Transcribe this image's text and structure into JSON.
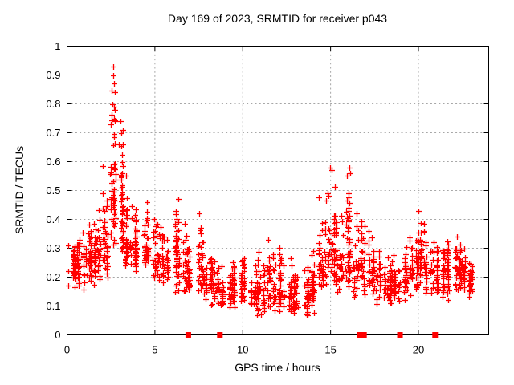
{
  "page": {
    "background": "#ffffff"
  },
  "chart_data": {
    "type": "scatter",
    "title": "Day 169 of 2023, SRMTID for receiver p043",
    "xlabel": "GPS time / hours",
    "ylabel": "SRMTID / TECUs",
    "xlim": [
      0,
      24
    ],
    "ylim": [
      0,
      1
    ],
    "xticks": [
      0,
      5,
      10,
      15,
      20
    ],
    "xtick_labels": [
      "0",
      "5",
      "10",
      "15",
      "20"
    ],
    "yticks": [
      0,
      0.1,
      0.2,
      0.3,
      0.4,
      0.5,
      0.6,
      0.7,
      0.8,
      0.9,
      1
    ],
    "ytick_labels": [
      "0",
      "0.1",
      "0.2",
      "0.3",
      "0.4",
      "0.5",
      "0.6",
      "0.7",
      "0.8",
      "0.9",
      "1"
    ],
    "grid": true,
    "legend": "none",
    "marker": {
      "shape": "plus",
      "color": "#ff0000",
      "size": 7
    },
    "colors": {
      "grid": "#a6a6a6",
      "frame": "#000000",
      "text": "#000000",
      "points": "#ff0000"
    },
    "series": [
      {
        "name": "SRMTID",
        "representation": "density_bins",
        "bin_format": [
          "t_start_h",
          "t_end_h",
          "n_points",
          "y_min",
          "y_max",
          "y_center"
        ],
        "bins": [
          [
            0.0,
            0.5,
            42,
            0.16,
            0.33,
            0.24
          ],
          [
            0.5,
            1.0,
            42,
            0.15,
            0.38,
            0.25
          ],
          [
            1.0,
            1.5,
            44,
            0.15,
            0.42,
            0.26
          ],
          [
            1.5,
            2.0,
            44,
            0.16,
            0.46,
            0.28
          ],
          [
            2.0,
            2.5,
            40,
            0.18,
            0.6,
            0.33
          ],
          [
            2.5,
            2.9,
            55,
            0.28,
            0.93,
            0.48
          ],
          [
            2.9,
            3.3,
            48,
            0.25,
            0.74,
            0.4
          ],
          [
            3.3,
            3.8,
            40,
            0.22,
            0.57,
            0.31
          ],
          [
            3.8,
            4.3,
            36,
            0.2,
            0.46,
            0.28
          ],
          [
            4.3,
            4.8,
            36,
            0.22,
            0.47,
            0.29
          ],
          [
            4.8,
            5.3,
            36,
            0.18,
            0.43,
            0.27
          ],
          [
            5.3,
            5.8,
            36,
            0.17,
            0.38,
            0.25
          ],
          [
            5.8,
            6.3,
            36,
            0.15,
            0.44,
            0.26
          ],
          [
            6.3,
            6.8,
            36,
            0.13,
            0.47,
            0.24
          ],
          [
            6.8,
            7.3,
            36,
            0.12,
            0.33,
            0.2
          ],
          [
            7.3,
            7.8,
            36,
            0.12,
            0.42,
            0.21
          ],
          [
            7.8,
            8.3,
            36,
            0.1,
            0.31,
            0.19
          ],
          [
            8.3,
            8.8,
            36,
            0.1,
            0.28,
            0.17
          ],
          [
            8.8,
            9.3,
            36,
            0.06,
            0.25,
            0.15
          ],
          [
            9.3,
            9.8,
            36,
            0.08,
            0.3,
            0.17
          ],
          [
            9.8,
            10.3,
            36,
            0.08,
            0.3,
            0.18
          ],
          [
            10.3,
            10.8,
            36,
            0.06,
            0.28,
            0.16
          ],
          [
            10.8,
            11.3,
            36,
            0.06,
            0.3,
            0.16
          ],
          [
            11.3,
            11.8,
            36,
            0.08,
            0.33,
            0.17
          ],
          [
            11.8,
            12.3,
            36,
            0.06,
            0.33,
            0.16
          ],
          [
            12.3,
            12.8,
            36,
            0.08,
            0.28,
            0.15
          ],
          [
            12.8,
            13.3,
            36,
            0.06,
            0.25,
            0.14
          ],
          [
            13.3,
            13.8,
            36,
            0.06,
            0.25,
            0.14
          ],
          [
            13.8,
            14.3,
            36,
            0.08,
            0.3,
            0.16
          ],
          [
            14.3,
            14.8,
            42,
            0.12,
            0.55,
            0.25
          ],
          [
            14.8,
            15.3,
            46,
            0.15,
            0.58,
            0.3
          ],
          [
            15.3,
            15.8,
            40,
            0.12,
            0.45,
            0.24
          ],
          [
            15.8,
            16.3,
            46,
            0.15,
            0.58,
            0.28
          ],
          [
            16.3,
            16.8,
            40,
            0.12,
            0.5,
            0.25
          ],
          [
            16.8,
            17.4,
            40,
            0.12,
            0.38,
            0.22
          ],
          [
            17.4,
            17.9,
            36,
            0.1,
            0.32,
            0.19
          ],
          [
            17.9,
            18.4,
            36,
            0.1,
            0.28,
            0.17
          ],
          [
            18.4,
            18.9,
            36,
            0.1,
            0.28,
            0.17
          ],
          [
            18.9,
            19.4,
            36,
            0.1,
            0.32,
            0.19
          ],
          [
            19.4,
            19.9,
            38,
            0.13,
            0.38,
            0.24
          ],
          [
            19.9,
            20.4,
            38,
            0.14,
            0.43,
            0.27
          ],
          [
            20.4,
            20.9,
            36,
            0.12,
            0.35,
            0.22
          ],
          [
            20.9,
            21.4,
            36,
            0.1,
            0.32,
            0.21
          ],
          [
            21.4,
            21.9,
            36,
            0.12,
            0.34,
            0.22
          ],
          [
            21.9,
            22.4,
            38,
            0.12,
            0.35,
            0.23
          ],
          [
            22.4,
            22.9,
            36,
            0.1,
            0.33,
            0.2
          ],
          [
            22.9,
            23.2,
            26,
            0.12,
            0.28,
            0.19
          ]
        ],
        "notable_points": [
          [
            2.62,
            0.93
          ],
          [
            2.65,
            0.9
          ],
          [
            2.68,
            0.87
          ],
          [
            2.7,
            0.84
          ],
          [
            2.6,
            0.8
          ],
          [
            2.72,
            0.78
          ],
          [
            2.66,
            0.75
          ],
          [
            3.05,
            0.74
          ],
          [
            3.1,
            0.7
          ],
          [
            2.95,
            0.66
          ],
          [
            3.35,
            0.55
          ],
          [
            14.95,
            0.58
          ],
          [
            15.05,
            0.57
          ],
          [
            16.05,
            0.58
          ],
          [
            16.1,
            0.56
          ],
          [
            6.35,
            0.47
          ],
          [
            4.55,
            0.46
          ],
          [
            7.5,
            0.42
          ],
          [
            20.0,
            0.43
          ],
          [
            17.15,
            0.36
          ],
          [
            11.45,
            0.33
          ],
          [
            22.2,
            0.34
          ],
          [
            0.05,
            0.31
          ],
          [
            0.05,
            0.22
          ],
          [
            0.05,
            0.17
          ]
        ]
      }
    ],
    "baseline_flags": {
      "marker": "filled-square",
      "color": "#ff0000",
      "y": 0,
      "t": [
        6.9,
        8.7,
        16.65,
        16.9,
        18.95,
        20.95
      ]
    }
  }
}
